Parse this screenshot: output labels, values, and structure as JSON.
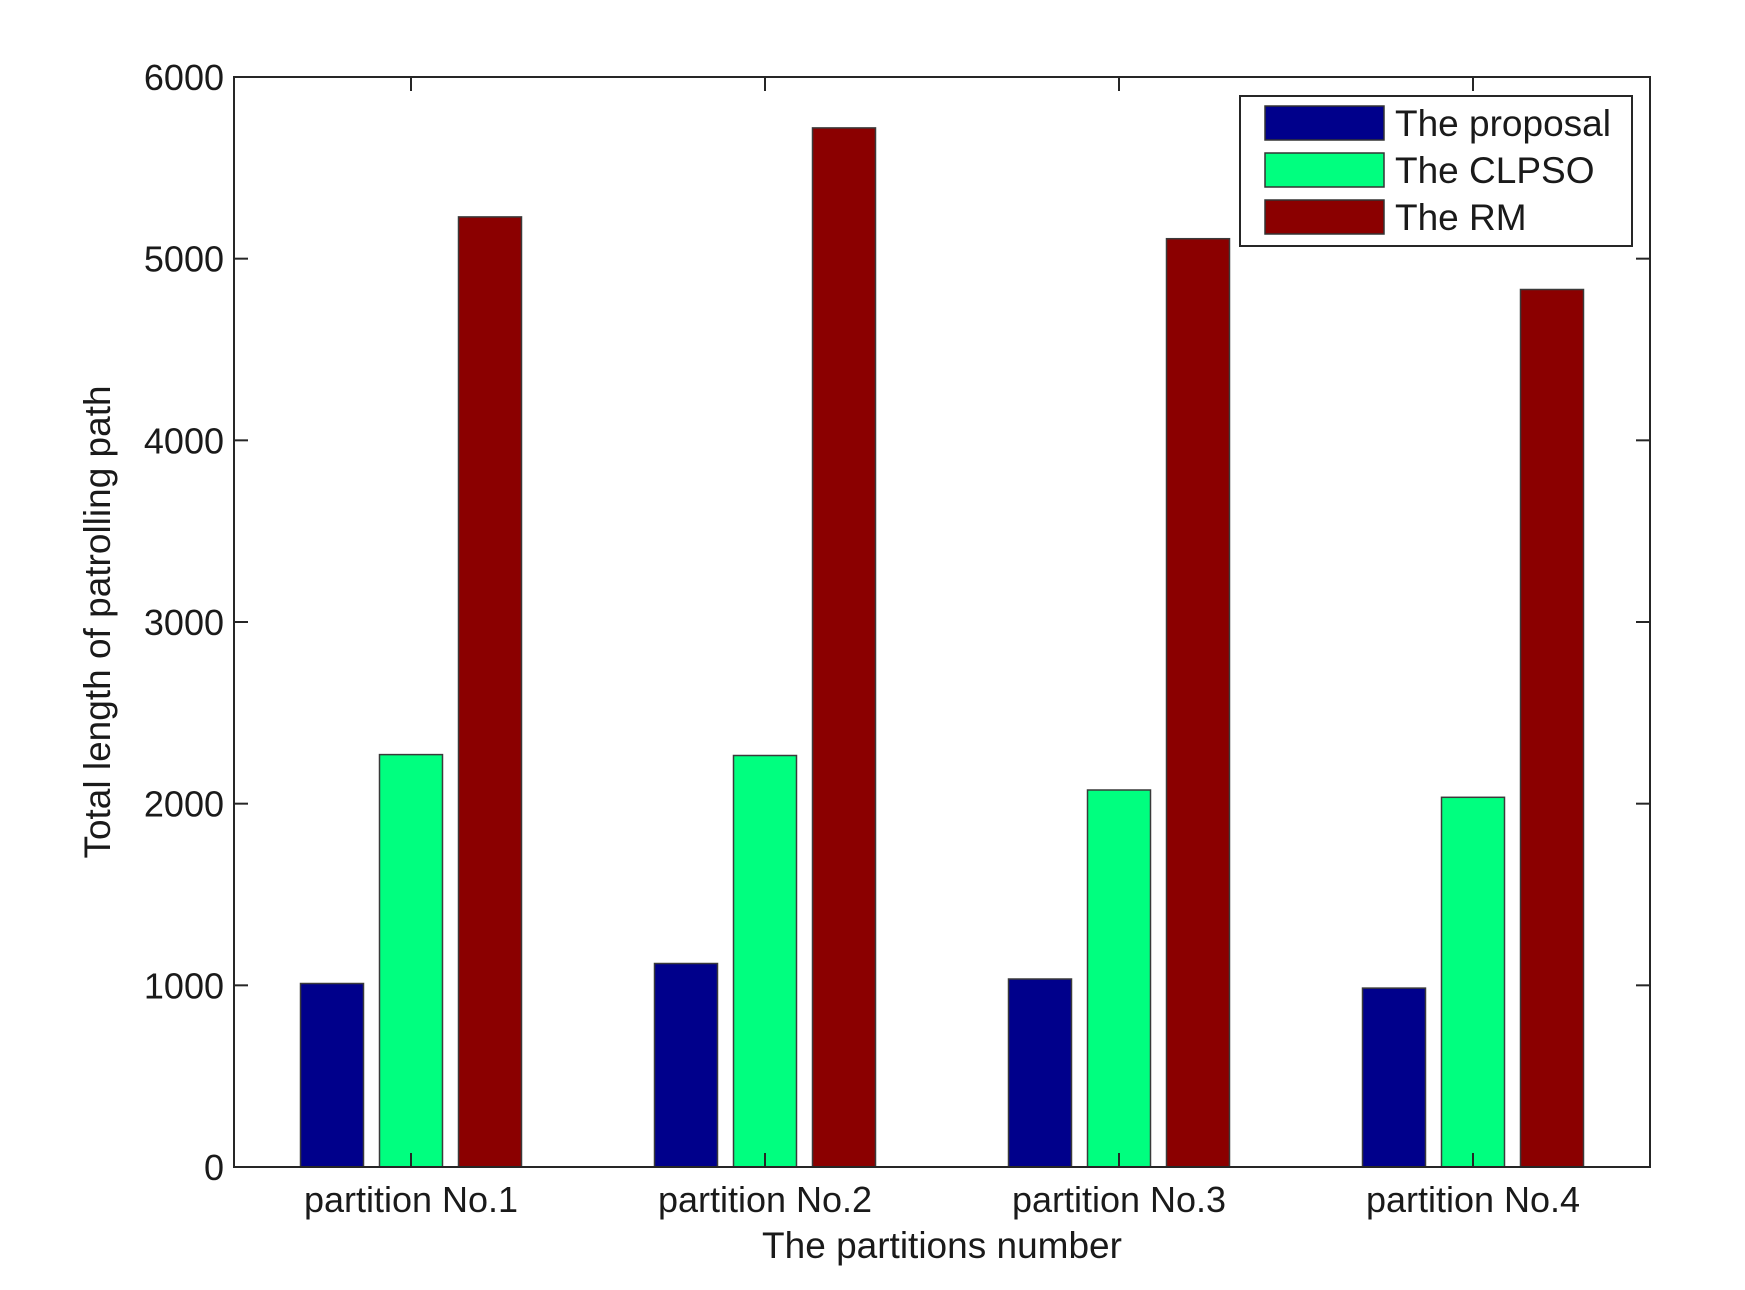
{
  "chart_data": {
    "type": "bar",
    "title": "",
    "xlabel": "The partitions number",
    "ylabel": "Total length of patrolling path",
    "categories": [
      "partition No.1",
      "partition No.2",
      "partition No.3",
      "partition No.4"
    ],
    "series": [
      {
        "name": "The proposal",
        "color": "#00008b",
        "values": [
          1010,
          1120,
          1035,
          985
        ]
      },
      {
        "name": "The CLPSO",
        "color": "#00ff7f",
        "values": [
          2270,
          2265,
          2075,
          2035
        ]
      },
      {
        "name": "The RM",
        "color": "#8b0000",
        "values": [
          5230,
          5720,
          5110,
          4830
        ]
      }
    ],
    "ylim": [
      0,
      6000
    ],
    "yticks": [
      "0",
      "1000",
      "2000",
      "3000",
      "4000",
      "5000",
      "6000"
    ],
    "grid": false,
    "legend_position": "top-right"
  }
}
